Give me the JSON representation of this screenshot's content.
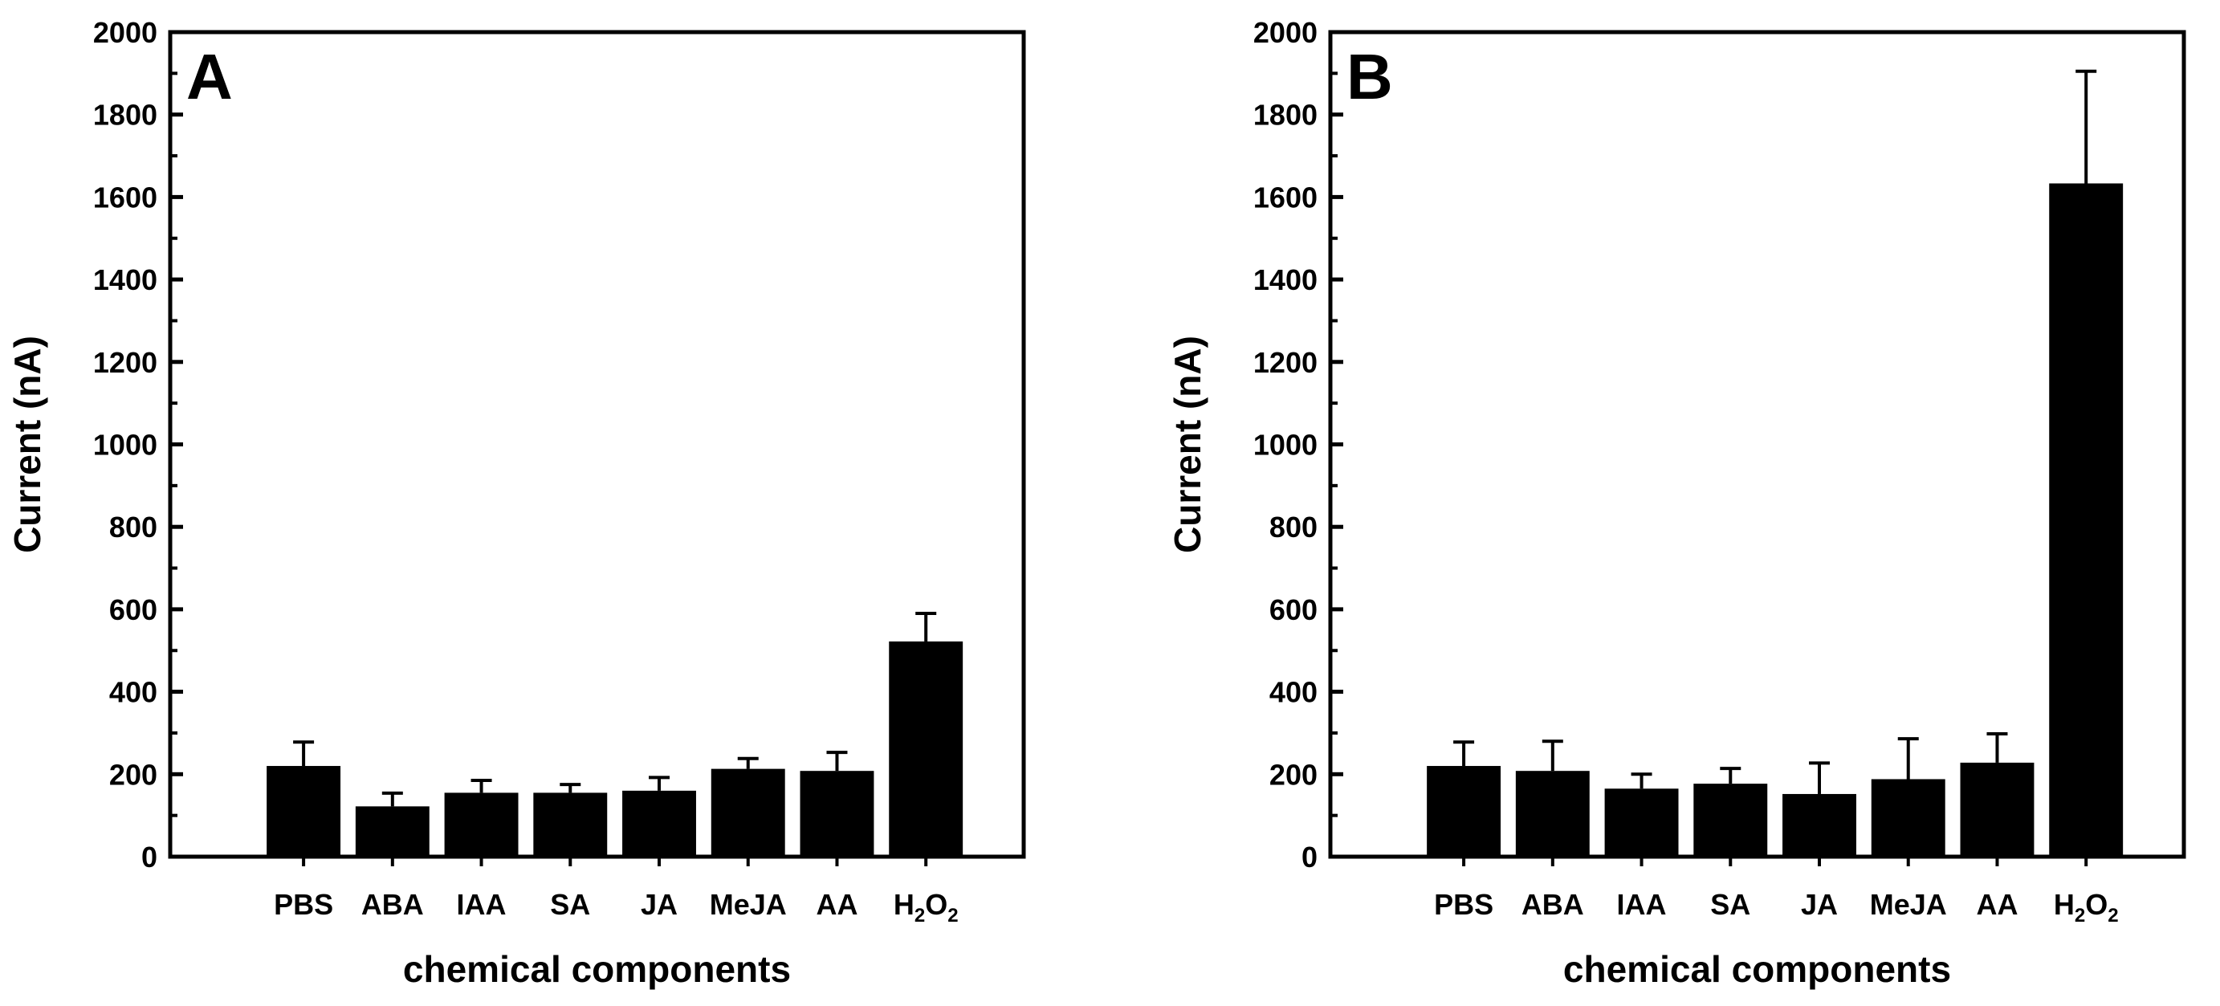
{
  "chart_data": [
    {
      "type": "bar",
      "panel_label": "A",
      "categories": [
        "PBS",
        "ABA",
        "IAA",
        "SA",
        "JA",
        "MeJA",
        "AA",
        "H2O2"
      ],
      "values": [
        220,
        122,
        155,
        155,
        160,
        213,
        208,
        522
      ],
      "errors": [
        58,
        32,
        30,
        20,
        32,
        25,
        45,
        68
      ],
      "xlabel": "chemical components",
      "ylabel": "Current (nA)",
      "ylim": [
        0,
        2000
      ],
      "yticks": [
        "0",
        "200",
        "400",
        "600",
        "800",
        "1000",
        "1200",
        "1400",
        "1600",
        "1800",
        "2000"
      ],
      "bar_color": "#000000",
      "grid": false
    },
    {
      "type": "bar",
      "panel_label": "B",
      "categories": [
        "PBS",
        "ABA",
        "IAA",
        "SA",
        "JA",
        "MeJA",
        "AA",
        "H2O2"
      ],
      "values": [
        220,
        208,
        165,
        177,
        152,
        188,
        228,
        1633
      ],
      "errors": [
        58,
        72,
        35,
        37,
        75,
        98,
        70,
        272
      ],
      "xlabel": "chemical components",
      "ylabel": "Current (nA)",
      "ylim": [
        0,
        2000
      ],
      "yticks": [
        "0",
        "200",
        "400",
        "600",
        "800",
        "1000",
        "1200",
        "1400",
        "1600",
        "1800",
        "2000"
      ],
      "bar_color": "#000000",
      "grid": false
    }
  ]
}
